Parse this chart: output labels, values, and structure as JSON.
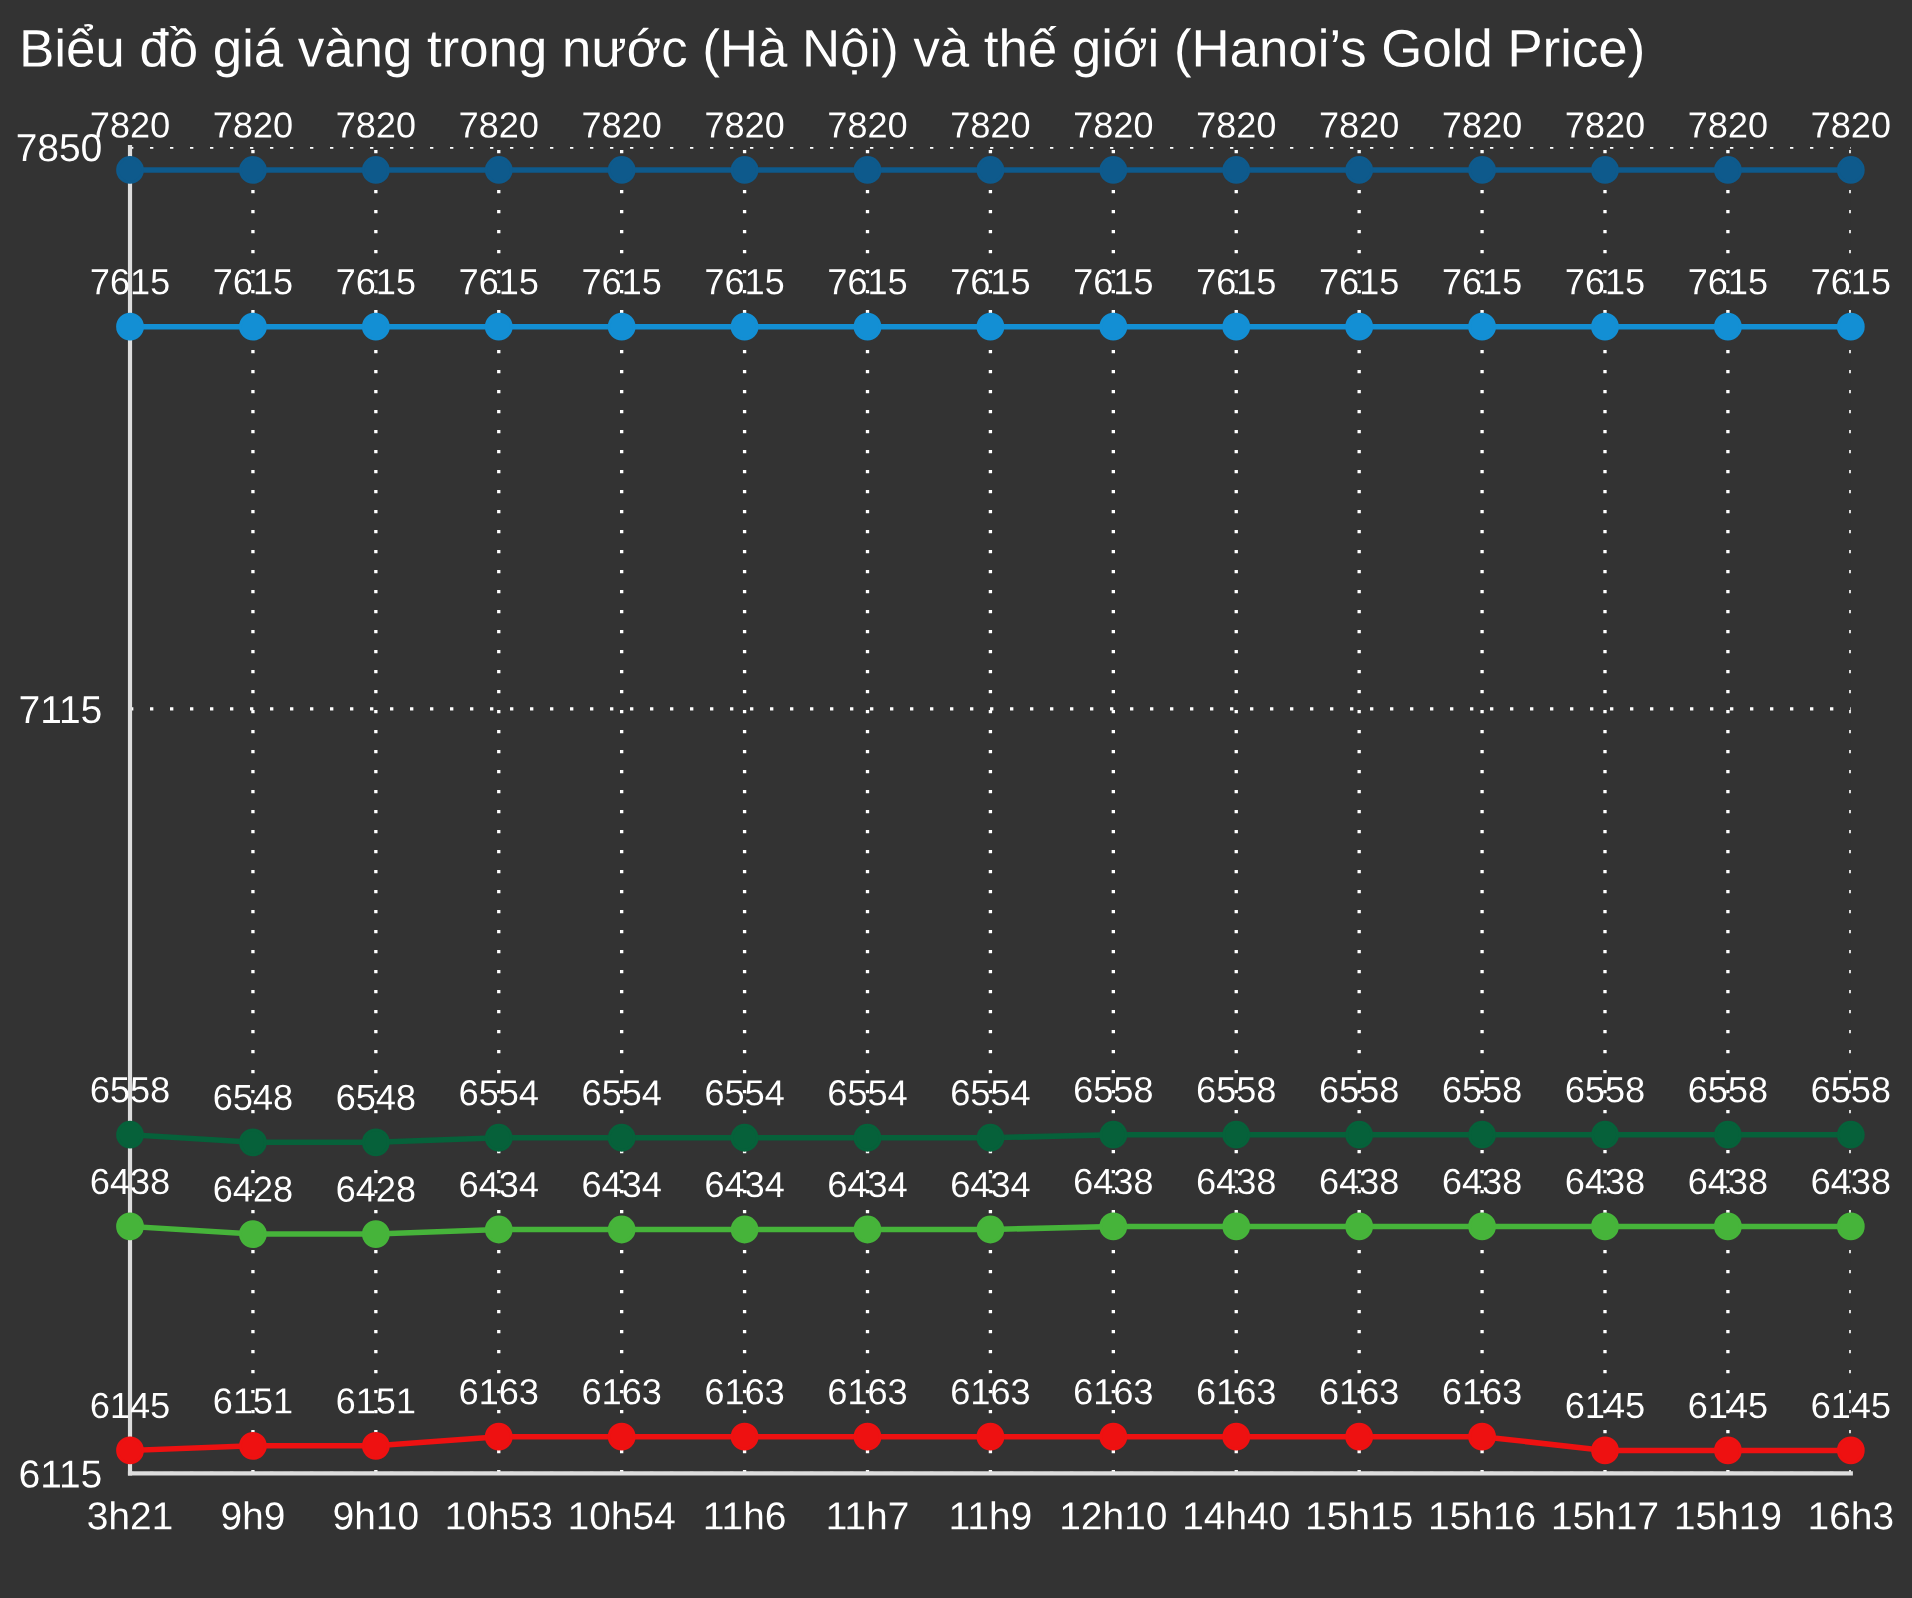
{
  "chart_data": {
    "type": "line",
    "title": "Biểu đồ giá vàng trong nước (Hà Nội) và thế giới (Hanoi’s Gold Price)",
    "categories": [
      "3h21",
      "9h9",
      "9h10",
      "10h53",
      "10h54",
      "11h6",
      "11h7",
      "11h9",
      "12h10",
      "14h40",
      "15h15",
      "15h16",
      "15h17",
      "15h19",
      "16h3"
    ],
    "series": [
      {
        "color": "#0e5a8c",
        "values": [
          7820,
          7820,
          7820,
          7820,
          7820,
          7820,
          7820,
          7820,
          7820,
          7820,
          7820,
          7820,
          7820,
          7820,
          7820
        ]
      },
      {
        "color": "#138fd4",
        "values": [
          7615,
          7615,
          7615,
          7615,
          7615,
          7615,
          7615,
          7615,
          7615,
          7615,
          7615,
          7615,
          7615,
          7615,
          7615
        ]
      },
      {
        "color": "#06613a",
        "values": [
          6558,
          6548,
          6548,
          6554,
          6554,
          6554,
          6554,
          6554,
          6558,
          6558,
          6558,
          6558,
          6558,
          6558,
          6558
        ]
      },
      {
        "color": "#46b43a",
        "values": [
          6438,
          6428,
          6428,
          6434,
          6434,
          6434,
          6434,
          6434,
          6438,
          6438,
          6438,
          6438,
          6438,
          6438,
          6438
        ]
      },
      {
        "color": "#ee1111",
        "values": [
          6145,
          6151,
          6151,
          6163,
          6163,
          6163,
          6163,
          6163,
          6163,
          6163,
          6163,
          6163,
          6145,
          6145,
          6145
        ]
      }
    ],
    "ylim": [
      6115,
      7850
    ],
    "yticks": [
      6115,
      7115,
      7850
    ],
    "grid": true,
    "line_style": "solid",
    "marker": "circle",
    "data_labels": true,
    "legend": false
  }
}
